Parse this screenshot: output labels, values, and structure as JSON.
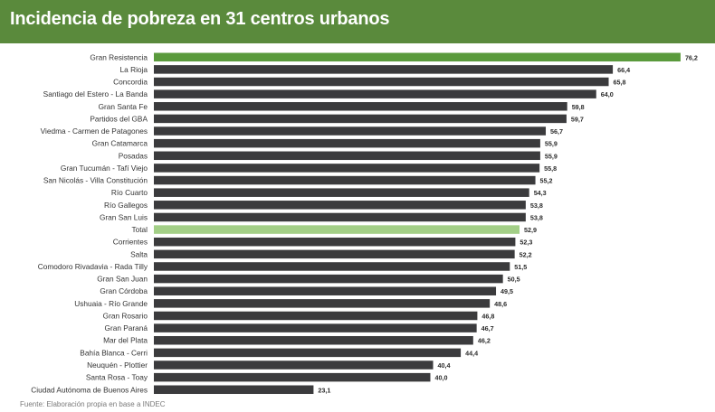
{
  "title": "Incidencia de pobreza en 31 centros urbanos",
  "source": "Fuente: Elaboración propia en base a INDEC",
  "colors": {
    "header": "#5a8a3c",
    "default_bar": "#3b3b3d",
    "highlight_top": "#5a9a3c",
    "highlight_total": "#a3cf87"
  },
  "chart_data": {
    "type": "bar",
    "orientation": "horizontal",
    "title": "Incidencia de pobreza en 31 centros urbanos",
    "xlabel": "",
    "ylabel": "",
    "xlim": [
      0,
      80
    ],
    "grid": false,
    "legend": "none",
    "categories": [
      "Gran Resistencia",
      "La Rioja",
      "Concordia",
      "Santiago del Estero - La Banda",
      "Gran Santa Fe",
      "Partidos del GBA",
      "Viedma - Carmen de Patagones",
      "Gran Catamarca",
      "Posadas",
      "Gran Tucumán - Tafí Viejo",
      "San Nicolás - Villa Constitución",
      "Río Cuarto",
      "Río Gallegos",
      "Gran San Luis",
      "Total",
      "Corrientes",
      "Salta",
      "Comodoro Rivadavia - Rada Tilly",
      "Gran San Juan",
      "Gran Córdoba",
      "Ushuaia - Río Grande",
      "Gran Rosario",
      "Gran Paraná",
      "Mar del Plata",
      "Bahía Blanca - Cerri",
      "Neuquén - Plottier",
      "Santa Rosa - Toay",
      "Ciudad Autónoma de Buenos Aires"
    ],
    "values": [
      76.2,
      66.4,
      65.8,
      64.0,
      59.8,
      59.7,
      56.7,
      55.9,
      55.9,
      55.8,
      55.2,
      54.3,
      53.8,
      53.8,
      52.9,
      52.3,
      52.2,
      51.5,
      50.5,
      49.5,
      48.6,
      46.8,
      46.7,
      46.2,
      44.4,
      40.4,
      40.0,
      23.1
    ],
    "value_labels": [
      "76,2",
      "66,4",
      "65,8",
      "64,0",
      "59,8",
      "59,7",
      "56,7",
      "55,9",
      "55,9",
      "55,8",
      "55,2",
      "54,3",
      "53,8",
      "53,8",
      "52,9",
      "52,3",
      "52,2",
      "51,5",
      "50,5",
      "49,5",
      "48,6",
      "46,8",
      "46,7",
      "46,2",
      "44,4",
      "40,4",
      "40,0",
      "23,1"
    ],
    "highlights": {
      "Gran Resistencia": "highlight_top",
      "Total": "highlight_total"
    }
  }
}
